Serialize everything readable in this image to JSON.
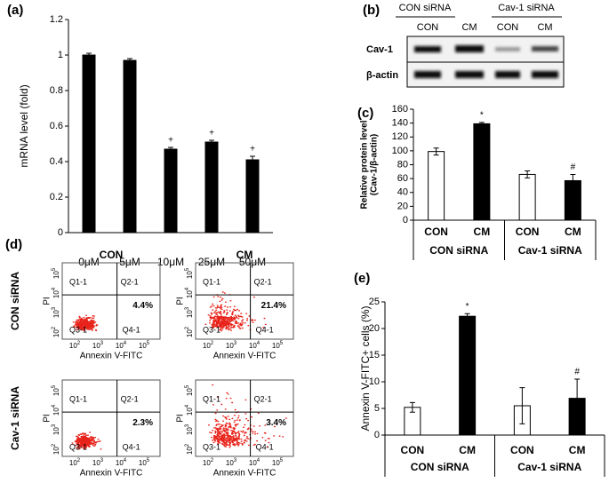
{
  "chart_data": [
    {
      "type": "bar",
      "panel": "(a)",
      "ylabel": "mRNA level (fold)",
      "categories": [
        "0μM",
        "5μM",
        "10μM",
        "25μM",
        "50μM"
      ],
      "values": [
        1.0,
        0.97,
        0.47,
        0.51,
        0.41
      ],
      "errors": [
        0.01,
        0.01,
        0.01,
        0.01,
        0.02
      ],
      "colors": [
        "#000000",
        "#000000",
        "#000000",
        "#000000",
        "#000000"
      ],
      "markers": [
        null,
        null,
        "+",
        "+",
        "+"
      ],
      "ylim": [
        0,
        1.2
      ],
      "yticks": [
        0,
        0.2,
        0.4,
        0.6,
        0.8,
        1,
        1.2
      ]
    },
    {
      "type": "bar",
      "panel": "(c)",
      "ylabel": [
        "Relative protein level",
        "(Cav-1/β-actin)"
      ],
      "categories": [
        "CON",
        "CM",
        "CON",
        "CM"
      ],
      "groups": [
        "CON siRNA",
        "Cav-1 siRNA"
      ],
      "values": [
        99,
        139,
        66,
        57
      ],
      "errors": [
        5,
        2,
        5,
        9
      ],
      "colors": [
        "#ffffff",
        "#000000",
        "#ffffff",
        "#000000"
      ],
      "markers": [
        null,
        "*",
        null,
        "#"
      ],
      "ylim": [
        0,
        160
      ],
      "yticks": [
        0,
        20,
        40,
        60,
        80,
        100,
        120,
        140,
        160
      ]
    },
    {
      "type": "bar",
      "panel": "(e)",
      "ylabel": "Annexin V-FITC+ cells (%)",
      "categories": [
        "CON",
        "CM",
        "CON",
        "CM"
      ],
      "groups": [
        "CON siRNA",
        "Cav-1 siRNA"
      ],
      "values": [
        5.2,
        22.3,
        5.5,
        6.9
      ],
      "errors": [
        0.9,
        0.5,
        3.4,
        3.6
      ],
      "colors": [
        "#ffffff",
        "#000000",
        "#ffffff",
        "#000000"
      ],
      "markers": [
        null,
        "*",
        null,
        "#"
      ],
      "ylim": [
        0,
        25
      ],
      "yticks": [
        0,
        5,
        10,
        15,
        20,
        25
      ]
    }
  ],
  "blot": {
    "panel": "(b)",
    "groups": [
      "CON siRNA",
      "Cav-1 siRNA"
    ],
    "lanes": [
      "CON",
      "CM",
      "CON",
      "CM"
    ],
    "rows": [
      "Cav-1",
      "β-actin"
    ]
  },
  "flow": {
    "panel": "(d)",
    "columns": [
      "CON",
      "CM"
    ],
    "rows": [
      "CON siRNA",
      "Cav-1 siRNA"
    ],
    "quadrants": [
      "Q1-1",
      "Q2-1",
      "Q3-1",
      "Q4-1"
    ],
    "xlabel": "Annexin V-FITC",
    "ylabel": "PI",
    "tick_base": "10",
    "tick_exponents": [
      "2",
      "3",
      "4",
      "5"
    ],
    "percentages": [
      [
        "4.4%",
        "21.4%"
      ],
      [
        "2.3%",
        "3.4%"
      ]
    ]
  }
}
